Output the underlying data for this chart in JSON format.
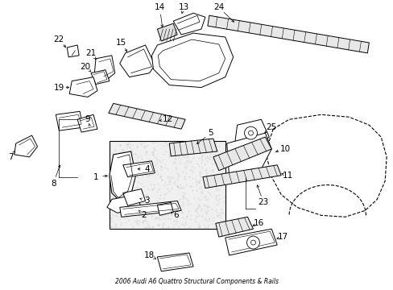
{
  "title": "2006 Audi A6 Quattro Structural Components & Rails",
  "background_color": "#ffffff",
  "line_color": "#000000",
  "figsize": [
    4.89,
    3.6
  ],
  "dpi": 100
}
